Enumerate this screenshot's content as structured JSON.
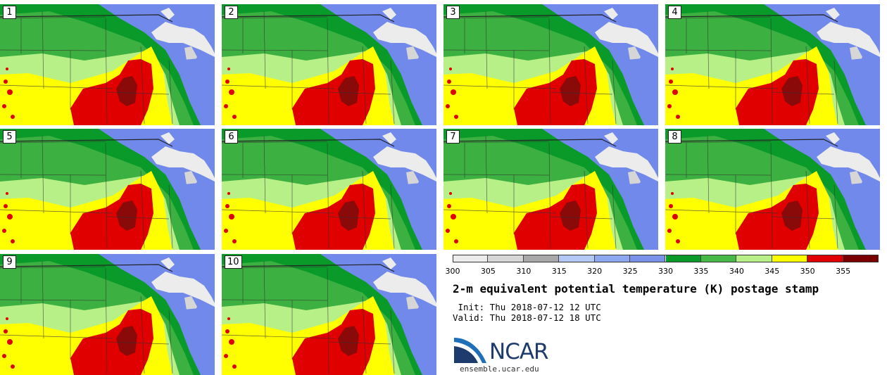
{
  "panels": [
    {
      "label": "1"
    },
    {
      "label": "2"
    },
    {
      "label": "3"
    },
    {
      "label": "4"
    },
    {
      "label": "5"
    },
    {
      "label": "6"
    },
    {
      "label": "7"
    },
    {
      "label": "8"
    },
    {
      "label": "9"
    },
    {
      "label": "10"
    }
  ],
  "colorbar": {
    "ticks": [
      "300",
      "305",
      "310",
      "315",
      "320",
      "325",
      "330",
      "335",
      "340",
      "345",
      "350",
      "355"
    ],
    "colors": [
      "#ececec",
      "#d6d6d6",
      "#a8a8a8",
      "#b4c8f5",
      "#8ea8f0",
      "#7a93ea",
      "#0a9a2a",
      "#45b845",
      "#b8f088",
      "#ffff00",
      "#e00000",
      "#7a0000"
    ]
  },
  "title": "2-m equivalent potential temperature (K) postage stamp",
  "init_line": " Init: Thu 2018-07-12 12 UTC",
  "valid_line": "Valid: Thu 2018-07-12 18 UTC",
  "logo": {
    "text": "NCAR",
    "url": "ensemble.ucar.edu"
  }
}
